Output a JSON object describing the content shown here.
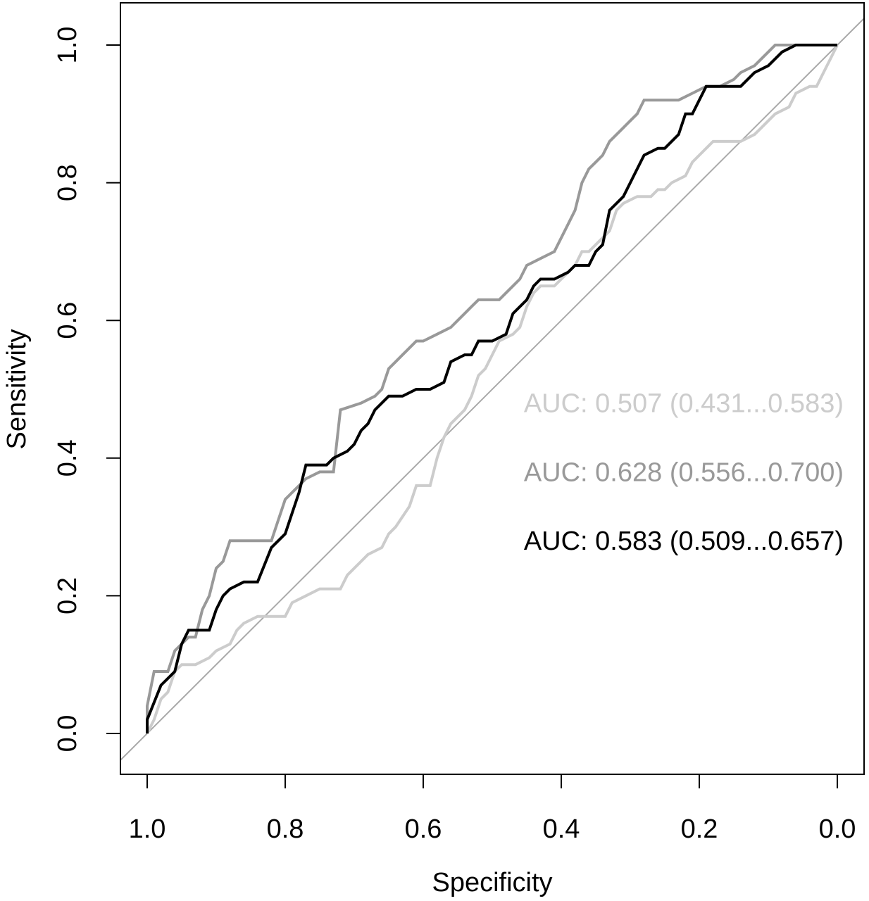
{
  "chart_data": {
    "type": "line",
    "title": "",
    "xlabel": "Specificity",
    "ylabel": "Sensitivity",
    "xlim": [
      1.0,
      0.0
    ],
    "ylim": [
      0.0,
      1.0
    ],
    "x_reversed": true,
    "xticks": [
      1.0,
      0.8,
      0.6,
      0.4,
      0.2,
      0.0
    ],
    "xtick_labels": [
      "1.0",
      "0.8",
      "0.6",
      "0.4",
      "0.2",
      "0.0"
    ],
    "yticks": [
      0.0,
      0.2,
      0.4,
      0.6,
      0.8,
      1.0
    ],
    "ytick_labels": [
      "0.0",
      "0.2",
      "0.4",
      "0.6",
      "0.8",
      "1.0"
    ],
    "grid": false,
    "reference_line": {
      "from": [
        1.0,
        0.0
      ],
      "to": [
        0.0,
        1.0
      ],
      "color": "#aaaaaa"
    },
    "series": [
      {
        "color": "#cccccc",
        "auc_label": "AUC: 0.507 (0.431...0.583)",
        "points": [
          [
            1.0,
            0.0
          ],
          [
            0.99,
            0.02
          ],
          [
            0.98,
            0.05
          ],
          [
            0.97,
            0.06
          ],
          [
            0.96,
            0.09
          ],
          [
            0.95,
            0.1
          ],
          [
            0.93,
            0.1
          ],
          [
            0.91,
            0.11
          ],
          [
            0.9,
            0.12
          ],
          [
            0.88,
            0.13
          ],
          [
            0.87,
            0.15
          ],
          [
            0.86,
            0.16
          ],
          [
            0.84,
            0.17
          ],
          [
            0.8,
            0.17
          ],
          [
            0.79,
            0.19
          ],
          [
            0.77,
            0.2
          ],
          [
            0.75,
            0.21
          ],
          [
            0.72,
            0.21
          ],
          [
            0.71,
            0.23
          ],
          [
            0.69,
            0.25
          ],
          [
            0.68,
            0.26
          ],
          [
            0.66,
            0.27
          ],
          [
            0.65,
            0.29
          ],
          [
            0.64,
            0.3
          ],
          [
            0.62,
            0.33
          ],
          [
            0.61,
            0.36
          ],
          [
            0.59,
            0.36
          ],
          [
            0.58,
            0.4
          ],
          [
            0.57,
            0.43
          ],
          [
            0.56,
            0.45
          ],
          [
            0.54,
            0.47
          ],
          [
            0.53,
            0.49
          ],
          [
            0.52,
            0.52
          ],
          [
            0.51,
            0.53
          ],
          [
            0.5,
            0.55
          ],
          [
            0.49,
            0.57
          ],
          [
            0.47,
            0.58
          ],
          [
            0.46,
            0.59
          ],
          [
            0.45,
            0.62
          ],
          [
            0.44,
            0.64
          ],
          [
            0.43,
            0.65
          ],
          [
            0.41,
            0.65
          ],
          [
            0.4,
            0.66
          ],
          [
            0.39,
            0.67
          ],
          [
            0.38,
            0.68
          ],
          [
            0.37,
            0.7
          ],
          [
            0.36,
            0.7
          ],
          [
            0.35,
            0.71
          ],
          [
            0.34,
            0.72
          ],
          [
            0.33,
            0.73
          ],
          [
            0.32,
            0.76
          ],
          [
            0.31,
            0.77
          ],
          [
            0.29,
            0.78
          ],
          [
            0.27,
            0.78
          ],
          [
            0.26,
            0.79
          ],
          [
            0.25,
            0.79
          ],
          [
            0.24,
            0.8
          ],
          [
            0.22,
            0.81
          ],
          [
            0.21,
            0.83
          ],
          [
            0.2,
            0.84
          ],
          [
            0.18,
            0.86
          ],
          [
            0.16,
            0.86
          ],
          [
            0.14,
            0.86
          ],
          [
            0.12,
            0.87
          ],
          [
            0.11,
            0.88
          ],
          [
            0.1,
            0.89
          ],
          [
            0.09,
            0.9
          ],
          [
            0.07,
            0.91
          ],
          [
            0.06,
            0.93
          ],
          [
            0.04,
            0.94
          ],
          [
            0.03,
            0.94
          ],
          [
            0.02,
            0.96
          ],
          [
            0.01,
            0.98
          ],
          [
            0.0,
            1.0
          ]
        ]
      },
      {
        "color": "#999999",
        "auc_label": "AUC: 0.628 (0.556...0.700)",
        "points": [
          [
            1.0,
            0.0
          ],
          [
            1.0,
            0.04
          ],
          [
            0.99,
            0.09
          ],
          [
            0.97,
            0.09
          ],
          [
            0.96,
            0.12
          ],
          [
            0.95,
            0.13
          ],
          [
            0.94,
            0.14
          ],
          [
            0.93,
            0.14
          ],
          [
            0.92,
            0.18
          ],
          [
            0.91,
            0.2
          ],
          [
            0.9,
            0.24
          ],
          [
            0.89,
            0.25
          ],
          [
            0.88,
            0.28
          ],
          [
            0.82,
            0.28
          ],
          [
            0.81,
            0.31
          ],
          [
            0.8,
            0.34
          ],
          [
            0.79,
            0.35
          ],
          [
            0.78,
            0.36
          ],
          [
            0.77,
            0.37
          ],
          [
            0.75,
            0.38
          ],
          [
            0.73,
            0.38
          ],
          [
            0.72,
            0.47
          ],
          [
            0.69,
            0.48
          ],
          [
            0.67,
            0.49
          ],
          [
            0.66,
            0.5
          ],
          [
            0.65,
            0.53
          ],
          [
            0.64,
            0.54
          ],
          [
            0.63,
            0.55
          ],
          [
            0.62,
            0.56
          ],
          [
            0.61,
            0.57
          ],
          [
            0.6,
            0.57
          ],
          [
            0.58,
            0.58
          ],
          [
            0.56,
            0.59
          ],
          [
            0.55,
            0.6
          ],
          [
            0.54,
            0.61
          ],
          [
            0.53,
            0.62
          ],
          [
            0.52,
            0.63
          ],
          [
            0.49,
            0.63
          ],
          [
            0.48,
            0.64
          ],
          [
            0.47,
            0.65
          ],
          [
            0.46,
            0.66
          ],
          [
            0.45,
            0.68
          ],
          [
            0.43,
            0.69
          ],
          [
            0.41,
            0.7
          ],
          [
            0.4,
            0.72
          ],
          [
            0.39,
            0.74
          ],
          [
            0.38,
            0.76
          ],
          [
            0.37,
            0.8
          ],
          [
            0.36,
            0.82
          ],
          [
            0.35,
            0.83
          ],
          [
            0.34,
            0.84
          ],
          [
            0.33,
            0.86
          ],
          [
            0.31,
            0.88
          ],
          [
            0.3,
            0.89
          ],
          [
            0.29,
            0.9
          ],
          [
            0.28,
            0.92
          ],
          [
            0.23,
            0.92
          ],
          [
            0.21,
            0.93
          ],
          [
            0.19,
            0.94
          ],
          [
            0.17,
            0.94
          ],
          [
            0.15,
            0.95
          ],
          [
            0.14,
            0.96
          ],
          [
            0.12,
            0.97
          ],
          [
            0.1,
            0.99
          ],
          [
            0.09,
            1.0
          ],
          [
            0.0,
            1.0
          ]
        ]
      },
      {
        "color": "#000000",
        "auc_label": "AUC: 0.583 (0.509...0.657)",
        "points": [
          [
            1.0,
            0.0
          ],
          [
            1.0,
            0.02
          ],
          [
            0.98,
            0.07
          ],
          [
            0.97,
            0.08
          ],
          [
            0.96,
            0.09
          ],
          [
            0.95,
            0.13
          ],
          [
            0.94,
            0.15
          ],
          [
            0.91,
            0.15
          ],
          [
            0.9,
            0.18
          ],
          [
            0.89,
            0.2
          ],
          [
            0.88,
            0.21
          ],
          [
            0.86,
            0.22
          ],
          [
            0.84,
            0.22
          ],
          [
            0.82,
            0.27
          ],
          [
            0.8,
            0.29
          ],
          [
            0.79,
            0.32
          ],
          [
            0.78,
            0.35
          ],
          [
            0.77,
            0.39
          ],
          [
            0.74,
            0.39
          ],
          [
            0.73,
            0.4
          ],
          [
            0.71,
            0.41
          ],
          [
            0.7,
            0.42
          ],
          [
            0.69,
            0.44
          ],
          [
            0.68,
            0.45
          ],
          [
            0.67,
            0.47
          ],
          [
            0.66,
            0.48
          ],
          [
            0.65,
            0.49
          ],
          [
            0.63,
            0.49
          ],
          [
            0.61,
            0.5
          ],
          [
            0.59,
            0.5
          ],
          [
            0.57,
            0.51
          ],
          [
            0.56,
            0.54
          ],
          [
            0.54,
            0.55
          ],
          [
            0.53,
            0.55
          ],
          [
            0.52,
            0.57
          ],
          [
            0.5,
            0.57
          ],
          [
            0.48,
            0.58
          ],
          [
            0.47,
            0.61
          ],
          [
            0.45,
            0.63
          ],
          [
            0.44,
            0.65
          ],
          [
            0.43,
            0.66
          ],
          [
            0.41,
            0.66
          ],
          [
            0.39,
            0.67
          ],
          [
            0.38,
            0.68
          ],
          [
            0.36,
            0.68
          ],
          [
            0.35,
            0.7
          ],
          [
            0.34,
            0.71
          ],
          [
            0.33,
            0.76
          ],
          [
            0.31,
            0.78
          ],
          [
            0.3,
            0.8
          ],
          [
            0.29,
            0.82
          ],
          [
            0.28,
            0.84
          ],
          [
            0.26,
            0.85
          ],
          [
            0.25,
            0.85
          ],
          [
            0.23,
            0.87
          ],
          [
            0.22,
            0.9
          ],
          [
            0.21,
            0.9
          ],
          [
            0.2,
            0.92
          ],
          [
            0.19,
            0.94
          ],
          [
            0.14,
            0.94
          ],
          [
            0.12,
            0.96
          ],
          [
            0.1,
            0.97
          ],
          [
            0.09,
            0.98
          ],
          [
            0.08,
            0.99
          ],
          [
            0.06,
            1.0
          ],
          [
            0.0,
            1.0
          ]
        ]
      }
    ]
  }
}
